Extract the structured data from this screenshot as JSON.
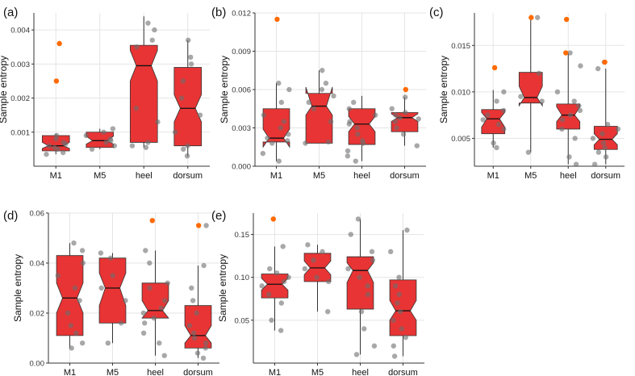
{
  "figure": {
    "colors": {
      "box": "#e83434",
      "point": "#6e6e6e",
      "outlier": "#ff6a00"
    }
  },
  "chart_data": [
    {
      "type": "box",
      "panel_label": "(a)",
      "ylabel": "Sample entropy",
      "categories": [
        "M1",
        "M5",
        "heel",
        "dorsum"
      ],
      "ylim": [
        0,
        0.0045
      ],
      "yticks": [
        0.001,
        0.002,
        0.003,
        0.004
      ],
      "yticklabels": [
        "0.001",
        "0.002",
        "0.003",
        "0.004"
      ],
      "series": [
        {
          "name": "M1",
          "q1": 0.00045,
          "median": 0.0006,
          "q3": 0.0009,
          "notch": [
            0.00052,
            0.0007
          ],
          "wlow": 0.00035,
          "whigh": 0.00095,
          "points": [
            0.00035,
            0.0004,
            0.0005,
            0.00055,
            0.0006,
            0.00065,
            0.0007,
            0.0008,
            0.0009
          ],
          "outliers": [
            0.0025,
            0.0036
          ]
        },
        {
          "name": "M5",
          "q1": 0.00055,
          "median": 0.00075,
          "q3": 0.001,
          "notch": [
            0.00065,
            0.00088
          ],
          "wlow": 0.0005,
          "whigh": 0.0011,
          "points": [
            0.0005,
            0.0006,
            0.0007,
            0.00075,
            0.0008,
            0.0009,
            0.001,
            0.0011
          ],
          "outliers": []
        },
        {
          "name": "heel",
          "q1": 0.0007,
          "median": 0.00295,
          "q3": 0.00355,
          "notch": [
            0.0025,
            0.0034
          ],
          "wlow": 0.00055,
          "whigh": 0.0044,
          "points": [
            0.00055,
            0.0006,
            0.0007,
            0.0013,
            0.0017,
            0.0035,
            0.0037,
            0.004,
            0.0042
          ],
          "outliers": []
        },
        {
          "name": "dorsum",
          "q1": 0.0006,
          "median": 0.0017,
          "q3": 0.0029,
          "notch": [
            0.0013,
            0.0021
          ],
          "wlow": 0.0003,
          "whigh": 0.0037,
          "points": [
            0.0003,
            0.0005,
            0.0006,
            0.001,
            0.0015,
            0.002,
            0.0025,
            0.003,
            0.0032,
            0.0037
          ],
          "outliers": []
        }
      ]
    },
    {
      "type": "box",
      "panel_label": "(b)",
      "ylabel": "Sample entropy",
      "categories": [
        "M1",
        "M5",
        "heel",
        "dorsum"
      ],
      "ylim": [
        0,
        0.012
      ],
      "yticks": [
        0,
        0.003,
        0.006,
        0.009,
        0.012
      ],
      "yticklabels": [
        "0.000",
        "0.003",
        "0.006",
        "0.009",
        "0.012"
      ],
      "series": [
        {
          "name": "M1",
          "q1": 0.0019,
          "median": 0.0022,
          "q3": 0.0045,
          "notch": [
            0.0015,
            0.0029
          ],
          "wlow": 0.0004,
          "whigh": 0.0065,
          "points": [
            0.0004,
            0.001,
            0.0018,
            0.002,
            0.0022,
            0.0025,
            0.003,
            0.0035,
            0.004,
            0.005,
            0.006,
            0.0065
          ],
          "outliers": [
            0.0115
          ]
        },
        {
          "name": "M5",
          "q1": 0.0018,
          "median": 0.0047,
          "q3": 0.0057,
          "notch": [
            0.004,
            0.0062
          ],
          "wlow": 0.0018,
          "whigh": 0.0075,
          "points": [
            0.0018,
            0.0019,
            0.0035,
            0.0045,
            0.005,
            0.0055,
            0.006,
            0.0065,
            0.0075
          ],
          "outliers": []
        },
        {
          "name": "heel",
          "q1": 0.0017,
          "median": 0.0033,
          "q3": 0.0045,
          "notch": [
            0.0027,
            0.0039
          ],
          "wlow": 0.0004,
          "whigh": 0.0055,
          "points": [
            0.0004,
            0.0008,
            0.0012,
            0.0018,
            0.002,
            0.0025,
            0.003,
            0.0033,
            0.0035,
            0.004,
            0.0045,
            0.005
          ],
          "outliers": []
        },
        {
          "name": "dorsum",
          "q1": 0.0027,
          "median": 0.0038,
          "q3": 0.0042,
          "notch": [
            0.0035,
            0.0041
          ],
          "wlow": 0.0016,
          "whigh": 0.0054,
          "points": [
            0.0016,
            0.0025,
            0.003,
            0.0035,
            0.0037,
            0.0038,
            0.004,
            0.0042,
            0.0045,
            0.0054
          ],
          "outliers": [
            0.006
          ]
        }
      ]
    },
    {
      "type": "box",
      "panel_label": "(c)",
      "ylabel": "Sample entropy",
      "categories": [
        "M1",
        "M5",
        "heel",
        "dorsum"
      ],
      "ylim": [
        0.002,
        0.0185
      ],
      "yticks": [
        0.005,
        0.01,
        0.015
      ],
      "yticklabels": [
        "0.005",
        "0.010",
        "0.015"
      ],
      "series": [
        {
          "name": "M1",
          "q1": 0.0055,
          "median": 0.0071,
          "q3": 0.0081,
          "notch": [
            0.0062,
            0.0078
          ],
          "wlow": 0.004,
          "whigh": 0.0102,
          "points": [
            0.004,
            0.0045,
            0.006,
            0.0065,
            0.007,
            0.0075,
            0.008,
            0.009,
            0.01
          ],
          "outliers": [
            0.0126
          ]
        },
        {
          "name": "M5",
          "q1": 0.0088,
          "median": 0.0094,
          "q3": 0.0121,
          "notch": [
            0.0085,
            0.0106
          ],
          "wlow": 0.0035,
          "whigh": 0.018,
          "points": [
            0.0035,
            0.009,
            0.0095,
            0.012,
            0.018
          ],
          "outliers": [
            0.018
          ]
        },
        {
          "name": "heel",
          "q1": 0.006,
          "median": 0.0075,
          "q3": 0.0087,
          "notch": [
            0.0068,
            0.0084
          ],
          "wlow": 0.0022,
          "whigh": 0.0142,
          "points": [
            0.0022,
            0.003,
            0.005,
            0.006,
            0.007,
            0.0075,
            0.008,
            0.0085,
            0.009,
            0.01,
            0.0128,
            0.0142
          ],
          "outliers": [
            0.0178,
            0.0142
          ]
        },
        {
          "name": "dorsum",
          "q1": 0.0038,
          "median": 0.0049,
          "q3": 0.0063,
          "notch": [
            0.0043,
            0.0055
          ],
          "wlow": 0.0022,
          "whigh": 0.0125,
          "points": [
            0.0022,
            0.003,
            0.0035,
            0.004,
            0.0045,
            0.005,
            0.0055,
            0.006,
            0.0065,
            0.0125,
            0.0132
          ],
          "outliers": [
            0.0132
          ]
        }
      ]
    },
    {
      "type": "box",
      "panel_label": "(d)",
      "ylabel": "Sample entropy",
      "categories": [
        "M1",
        "M5",
        "heel",
        "dorsum"
      ],
      "ylim": [
        0,
        0.06
      ],
      "yticks": [
        0,
        0.02,
        0.04,
        0.06
      ],
      "yticklabels": [
        "0.00",
        "0.02",
        "0.04",
        "0.06"
      ],
      "series": [
        {
          "name": "M1",
          "q1": 0.011,
          "median": 0.026,
          "q3": 0.043,
          "notch": [
            0.02,
            0.032
          ],
          "wlow": 0.006,
          "whigh": 0.048,
          "points": [
            0.006,
            0.008,
            0.012,
            0.015,
            0.02,
            0.025,
            0.03,
            0.035,
            0.04,
            0.045,
            0.048
          ],
          "outliers": []
        },
        {
          "name": "M5",
          "q1": 0.016,
          "median": 0.03,
          "q3": 0.042,
          "notch": [
            0.023,
            0.036
          ],
          "wlow": 0.008,
          "whigh": 0.044,
          "points": [
            0.008,
            0.016,
            0.025,
            0.03,
            0.035,
            0.042,
            0.044
          ],
          "outliers": []
        },
        {
          "name": "heel",
          "q1": 0.018,
          "median": 0.021,
          "q3": 0.032,
          "notch": [
            0.018,
            0.025
          ],
          "wlow": 0.003,
          "whigh": 0.045,
          "points": [
            0.003,
            0.008,
            0.012,
            0.016,
            0.018,
            0.02,
            0.022,
            0.025,
            0.03,
            0.032,
            0.04,
            0.045
          ],
          "outliers": [
            0.057
          ]
        },
        {
          "name": "dorsum",
          "q1": 0.006,
          "median": 0.011,
          "q3": 0.023,
          "notch": [
            0.008,
            0.015
          ],
          "wlow": 0.002,
          "whigh": 0.039,
          "points": [
            0.002,
            0.004,
            0.006,
            0.008,
            0.01,
            0.012,
            0.015,
            0.02,
            0.025,
            0.03,
            0.039,
            0.055
          ],
          "outliers": [
            0.055
          ]
        }
      ]
    },
    {
      "type": "box",
      "panel_label": "(e)",
      "ylabel": "Sample entropy",
      "categories": [
        "M1",
        "M5",
        "heel",
        "dorsum"
      ],
      "ylim": [
        0,
        0.175
      ],
      "yticks": [
        0.05,
        0.1,
        0.15
      ],
      "yticklabels": [
        "0.05",
        "0.10",
        "0.15"
      ],
      "series": [
        {
          "name": "M1",
          "q1": 0.076,
          "median": 0.092,
          "q3": 0.104,
          "notch": [
            0.085,
            0.099
          ],
          "wlow": 0.038,
          "whigh": 0.136,
          "points": [
            0.038,
            0.05,
            0.07,
            0.08,
            0.09,
            0.095,
            0.1,
            0.105,
            0.11,
            0.136
          ],
          "outliers": [
            0.168
          ]
        },
        {
          "name": "M5",
          "q1": 0.095,
          "median": 0.111,
          "q3": 0.128,
          "notch": [
            0.103,
            0.119
          ],
          "wlow": 0.06,
          "whigh": 0.138,
          "points": [
            0.06,
            0.095,
            0.1,
            0.11,
            0.12,
            0.13,
            0.138
          ],
          "outliers": []
        },
        {
          "name": "heel",
          "q1": 0.063,
          "median": 0.108,
          "q3": 0.124,
          "notch": [
            0.094,
            0.117
          ],
          "wlow": 0.01,
          "whigh": 0.168,
          "points": [
            0.01,
            0.02,
            0.04,
            0.06,
            0.08,
            0.09,
            0.1,
            0.11,
            0.12,
            0.13,
            0.15,
            0.168
          ],
          "outliers": []
        },
        {
          "name": "dorsum",
          "q1": 0.032,
          "median": 0.061,
          "q3": 0.097,
          "notch": [
            0.05,
            0.073
          ],
          "wlow": 0.008,
          "whigh": 0.155,
          "points": [
            0.008,
            0.02,
            0.03,
            0.04,
            0.05,
            0.06,
            0.07,
            0.08,
            0.09,
            0.1,
            0.13,
            0.155
          ],
          "outliers": []
        }
      ]
    }
  ]
}
